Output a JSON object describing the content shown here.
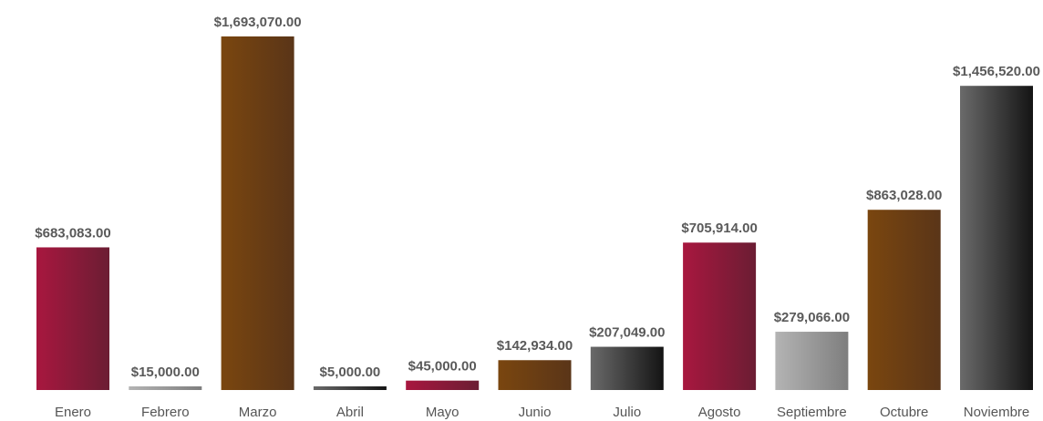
{
  "chart_data": {
    "type": "bar",
    "categories": [
      "Enero",
      "Febrero",
      "Marzo",
      "Abril",
      "Mayo",
      "Junio",
      "Julio",
      "Agosto",
      "Septiembre",
      "Octubre",
      "Noviembre"
    ],
    "values": [
      683083,
      15000,
      1693070,
      5000,
      45000,
      142934,
      207049,
      705914,
      279066,
      863028,
      1456520
    ],
    "value_labels": [
      "$683,083.00",
      "$15,000.00",
      "$1,693,070.00",
      "$5,000.00",
      "$45,000.00",
      "$142,934.00",
      "$207,049.00",
      "$705,914.00",
      "$279,066.00",
      "$863,028.00",
      "$1,456,520.00"
    ],
    "colors": [
      [
        "#a8173f",
        "#6b1d33"
      ],
      [
        "#b4b4b4",
        "#7e7e7e"
      ],
      [
        "#7a460f",
        "#5a3518"
      ],
      [
        "#6a6a6a",
        "#141414"
      ],
      [
        "#a8173f",
        "#6b1d33"
      ],
      [
        "#7a460f",
        "#5a3518"
      ],
      [
        "#6a6a6a",
        "#141414"
      ],
      [
        "#a8173f",
        "#6b1d33"
      ],
      [
        "#b4b4b4",
        "#7e7e7e"
      ],
      [
        "#7a460f",
        "#5a3518"
      ],
      [
        "#6a6a6a",
        "#141414"
      ]
    ]
  }
}
